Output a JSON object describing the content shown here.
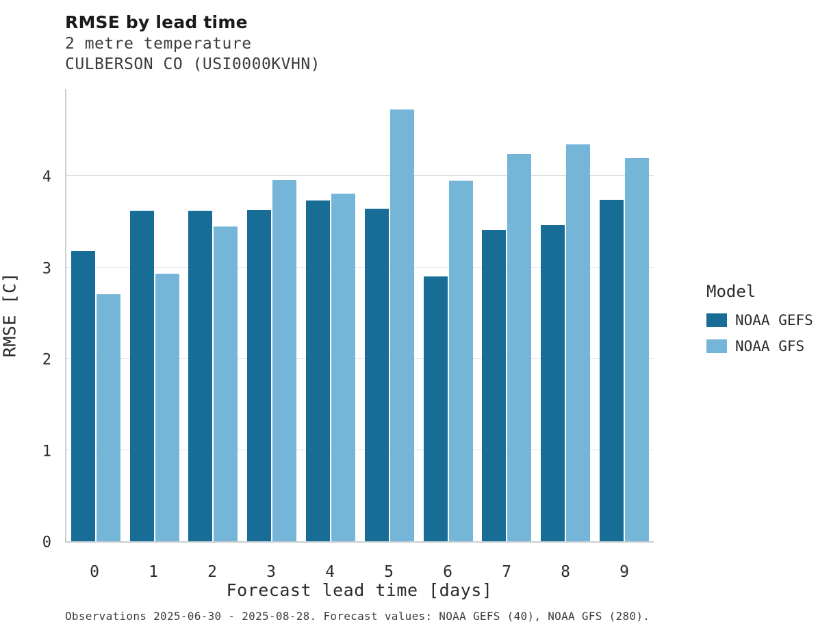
{
  "titles": {
    "main": "RMSE by lead time",
    "subtitle1": "2 metre temperature",
    "subtitle2": "CULBERSON CO (USI0000KVHN)"
  },
  "legend": {
    "title": "Model",
    "items": [
      {
        "label": "NOAA GEFS",
        "color": "#176d96"
      },
      {
        "label": "NOAA GFS",
        "color": "#74b5d8"
      }
    ]
  },
  "footnote": "Observations 2025-06-30 - 2025-08-28. Forecast values: NOAA GEFS (40), NOAA GFS (280).",
  "chart_data": {
    "type": "bar",
    "title": "RMSE by lead time",
    "subtitle": "2 metre temperature — CULBERSON CO (USI0000KVHN)",
    "xlabel": "Forecast lead time [days]",
    "ylabel": "RMSE [C]",
    "categories": [
      "0",
      "1",
      "2",
      "3",
      "4",
      "5",
      "6",
      "7",
      "8",
      "9"
    ],
    "series": [
      {
        "name": "NOAA GEFS",
        "color": "#176d96",
        "values": [
          3.18,
          3.62,
          3.62,
          3.63,
          3.73,
          3.64,
          2.9,
          3.41,
          3.46,
          3.74
        ]
      },
      {
        "name": "NOAA GFS",
        "color": "#74b5d8",
        "values": [
          2.71,
          2.93,
          3.45,
          3.96,
          3.81,
          4.73,
          3.95,
          4.24,
          4.35,
          4.2
        ]
      }
    ],
    "ylim": [
      0,
      4.97
    ],
    "yticks": [
      0,
      1,
      2,
      3,
      4
    ],
    "grid": true,
    "legend_position": "right"
  }
}
